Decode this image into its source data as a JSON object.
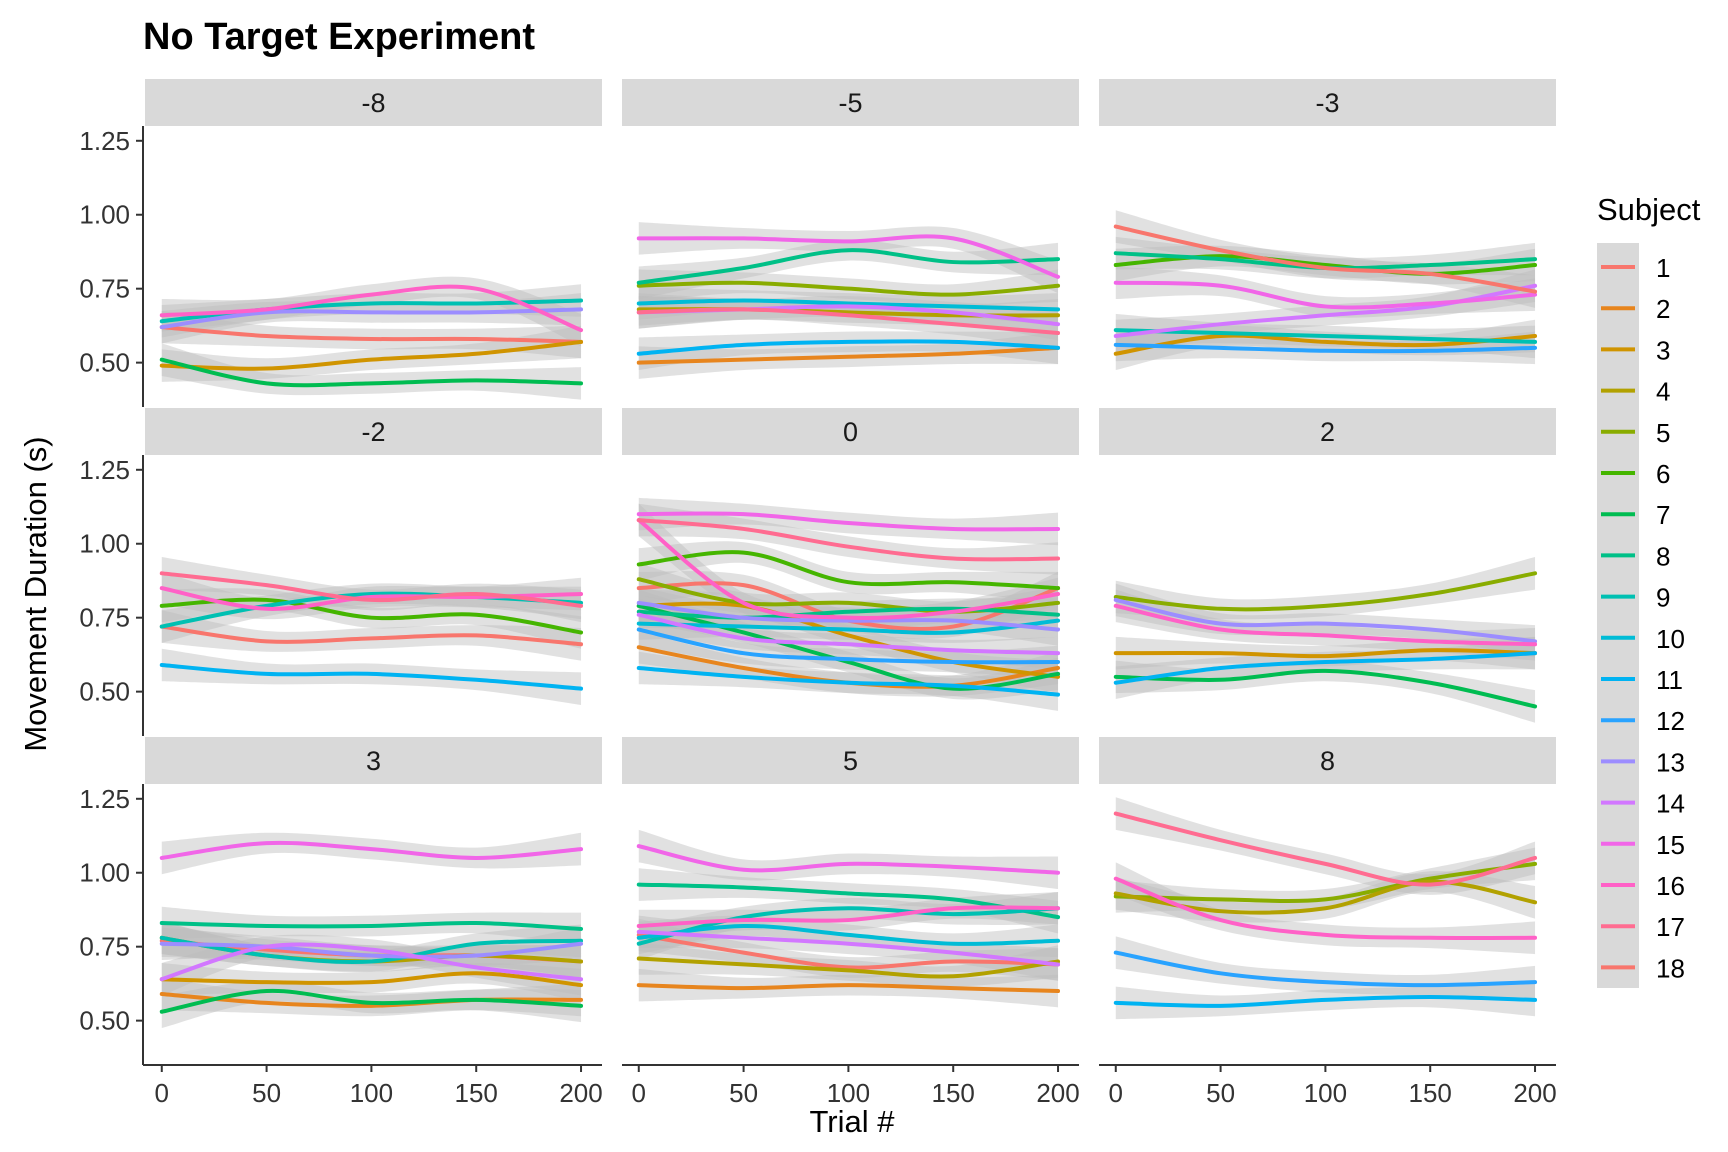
{
  "chart_data": {
    "type": "line",
    "title": "No Target Experiment",
    "xlabel": "Trial #",
    "ylabel": "Movement Duration (s)",
    "xlim": [
      -8,
      210
    ],
    "ylim": [
      0.35,
      1.3
    ],
    "x_ticks": [
      0,
      50,
      100,
      150,
      200
    ],
    "y_ticks": [
      0.5,
      0.75,
      1.0,
      1.25
    ],
    "y_tick_labels": [
      "0.50",
      "0.75",
      "1.00",
      "1.25"
    ],
    "x_tick_labels": [
      "0",
      "50",
      "100",
      "150",
      "200"
    ],
    "x": [
      0,
      50,
      100,
      150,
      200
    ],
    "grid": false,
    "facet_layout": "3x3",
    "confidence_band": true,
    "legend": {
      "title": "Subject",
      "position": "right",
      "entries": [
        {
          "label": "1",
          "color": "#F8766D"
        },
        {
          "label": "2",
          "color": "#E7851E"
        },
        {
          "label": "3",
          "color": "#D09400"
        },
        {
          "label": "4",
          "color": "#B2A100"
        },
        {
          "label": "5",
          "color": "#89AC00"
        },
        {
          "label": "6",
          "color": "#45B500"
        },
        {
          "label": "7",
          "color": "#00BC51"
        },
        {
          "label": "8",
          "color": "#00C087"
        },
        {
          "label": "9",
          "color": "#00C0B2"
        },
        {
          "label": "10",
          "color": "#00BCD6"
        },
        {
          "label": "11",
          "color": "#00B3F2"
        },
        {
          "label": "12",
          "color": "#29A3FF"
        },
        {
          "label": "13",
          "color": "#9C8DFF"
        },
        {
          "label": "14",
          "color": "#D277FF"
        },
        {
          "label": "15",
          "color": "#F166E8"
        },
        {
          "label": "16",
          "color": "#FF61C7"
        },
        {
          "label": "17",
          "color": "#FF6C91"
        },
        {
          "label": "18",
          "color": "#F8766D"
        }
      ]
    },
    "facets": [
      {
        "label": "-8",
        "series": [
          {
            "subject": "1",
            "color": "#F8766D",
            "values": [
              0.62,
              0.59,
              0.58,
              0.58,
              0.57
            ]
          },
          {
            "subject": "3",
            "color": "#D09400",
            "values": [
              0.49,
              0.48,
              0.51,
              0.53,
              0.57
            ]
          },
          {
            "subject": "7",
            "color": "#00BC51",
            "values": [
              0.51,
              0.43,
              0.43,
              0.44,
              0.43
            ]
          },
          {
            "subject": "9",
            "color": "#00C0B2",
            "values": [
              0.64,
              0.68,
              0.7,
              0.7,
              0.71
            ]
          },
          {
            "subject": "13",
            "color": "#9C8DFF",
            "values": [
              0.62,
              0.67,
              0.67,
              0.67,
              0.68
            ]
          },
          {
            "subject": "16",
            "color": "#FF61C7",
            "values": [
              0.66,
              0.68,
              0.73,
              0.75,
              0.61
            ]
          }
        ]
      },
      {
        "label": "-5",
        "series": [
          {
            "subject": "2",
            "color": "#E7851E",
            "values": [
              0.5,
              0.51,
              0.52,
              0.53,
              0.55
            ]
          },
          {
            "subject": "4",
            "color": "#B2A100",
            "values": [
              0.68,
              0.68,
              0.67,
              0.66,
              0.66
            ]
          },
          {
            "subject": "5",
            "color": "#89AC00",
            "values": [
              0.76,
              0.77,
              0.75,
              0.73,
              0.76
            ]
          },
          {
            "subject": "8",
            "color": "#00C087",
            "values": [
              0.77,
              0.82,
              0.88,
              0.84,
              0.85
            ]
          },
          {
            "subject": "10",
            "color": "#00BCD6",
            "values": [
              0.7,
              0.71,
              0.7,
              0.69,
              0.68
            ]
          },
          {
            "subject": "11",
            "color": "#00B3F2",
            "values": [
              0.53,
              0.56,
              0.57,
              0.57,
              0.55
            ]
          },
          {
            "subject": "14",
            "color": "#D277FF",
            "values": [
              0.67,
              0.68,
              0.69,
              0.67,
              0.63
            ]
          },
          {
            "subject": "15",
            "color": "#F166E8",
            "values": [
              0.92,
              0.92,
              0.91,
              0.92,
              0.79
            ]
          },
          {
            "subject": "17",
            "color": "#FF6C91",
            "values": [
              0.67,
              0.68,
              0.66,
              0.63,
              0.6
            ]
          }
        ]
      },
      {
        "label": "-3",
        "series": [
          {
            "subject": "3",
            "color": "#D09400",
            "values": [
              0.53,
              0.59,
              0.57,
              0.56,
              0.59
            ]
          },
          {
            "subject": "6",
            "color": "#45B500",
            "values": [
              0.83,
              0.86,
              0.83,
              0.8,
              0.83
            ]
          },
          {
            "subject": "8",
            "color": "#00C087",
            "values": [
              0.87,
              0.85,
              0.82,
              0.83,
              0.85
            ]
          },
          {
            "subject": "9",
            "color": "#00C0B2",
            "values": [
              0.61,
              0.6,
              0.59,
              0.58,
              0.57
            ]
          },
          {
            "subject": "12",
            "color": "#29A3FF",
            "values": [
              0.56,
              0.55,
              0.54,
              0.54,
              0.55
            ]
          },
          {
            "subject": "14",
            "color": "#D277FF",
            "values": [
              0.59,
              0.63,
              0.66,
              0.69,
              0.76
            ]
          },
          {
            "subject": "15",
            "color": "#F166E8",
            "values": [
              0.77,
              0.76,
              0.69,
              0.7,
              0.73
            ]
          },
          {
            "subject": "18",
            "color": "#F8766D",
            "values": [
              0.96,
              0.88,
              0.82,
              0.8,
              0.74
            ]
          }
        ]
      },
      {
        "label": "-2",
        "series": [
          {
            "subject": "1",
            "color": "#F8766D",
            "values": [
              0.72,
              0.67,
              0.68,
              0.69,
              0.66
            ]
          },
          {
            "subject": "6",
            "color": "#45B500",
            "values": [
              0.79,
              0.81,
              0.75,
              0.76,
              0.7
            ]
          },
          {
            "subject": "9",
            "color": "#00C0B2",
            "values": [
              0.72,
              0.79,
              0.83,
              0.82,
              0.8
            ]
          },
          {
            "subject": "11",
            "color": "#00B3F2",
            "values": [
              0.59,
              0.56,
              0.56,
              0.54,
              0.51
            ]
          },
          {
            "subject": "16",
            "color": "#FF61C7",
            "values": [
              0.85,
              0.78,
              0.82,
              0.82,
              0.83
            ]
          },
          {
            "subject": "17",
            "color": "#FF6C91",
            "values": [
              0.9,
              0.86,
              0.81,
              0.83,
              0.79
            ]
          }
        ]
      },
      {
        "label": "0",
        "series": [
          {
            "subject": "1",
            "color": "#F8766D",
            "values": [
              0.85,
              0.86,
              0.74,
              0.72,
              0.85
            ]
          },
          {
            "subject": "2",
            "color": "#E7851E",
            "values": [
              0.65,
              0.58,
              0.53,
              0.52,
              0.58
            ]
          },
          {
            "subject": "3",
            "color": "#D09400",
            "values": [
              0.79,
              0.79,
              0.69,
              0.6,
              0.55
            ]
          },
          {
            "subject": "5",
            "color": "#89AC00",
            "values": [
              0.88,
              0.8,
              0.8,
              0.77,
              0.8
            ]
          },
          {
            "subject": "6",
            "color": "#45B500",
            "values": [
              0.93,
              0.97,
              0.87,
              0.87,
              0.85
            ]
          },
          {
            "subject": "7",
            "color": "#00BC51",
            "values": [
              0.79,
              0.7,
              0.6,
              0.51,
              0.56
            ]
          },
          {
            "subject": "8",
            "color": "#00C087",
            "values": [
              0.77,
              0.75,
              0.77,
              0.78,
              0.76
            ]
          },
          {
            "subject": "10",
            "color": "#00BCD6",
            "values": [
              0.73,
              0.72,
              0.71,
              0.7,
              0.74
            ]
          },
          {
            "subject": "11",
            "color": "#00B3F2",
            "values": [
              0.58,
              0.55,
              0.53,
              0.52,
              0.49
            ]
          },
          {
            "subject": "12",
            "color": "#29A3FF",
            "values": [
              0.71,
              0.63,
              0.61,
              0.6,
              0.6
            ]
          },
          {
            "subject": "13",
            "color": "#9C8DFF",
            "values": [
              0.8,
              0.75,
              0.74,
              0.74,
              0.71
            ]
          },
          {
            "subject": "14",
            "color": "#D277FF",
            "values": [
              0.76,
              0.68,
              0.66,
              0.64,
              0.63
            ]
          },
          {
            "subject": "15",
            "color": "#F166E8",
            "values": [
              1.1,
              1.1,
              1.07,
              1.05,
              1.05
            ]
          },
          {
            "subject": "16",
            "color": "#FF61C7",
            "values": [
              1.08,
              0.8,
              0.75,
              0.77,
              0.83
            ]
          },
          {
            "subject": "17",
            "color": "#FF6C91",
            "values": [
              1.08,
              1.05,
              0.99,
              0.95,
              0.95
            ]
          }
        ]
      },
      {
        "label": "2",
        "series": [
          {
            "subject": "3",
            "color": "#D09400",
            "values": [
              0.63,
              0.63,
              0.62,
              0.64,
              0.63
            ]
          },
          {
            "subject": "5",
            "color": "#89AC00",
            "values": [
              0.82,
              0.78,
              0.79,
              0.83,
              0.9
            ]
          },
          {
            "subject": "7",
            "color": "#00BC51",
            "values": [
              0.55,
              0.54,
              0.57,
              0.53,
              0.45
            ]
          },
          {
            "subject": "11",
            "color": "#00B3F2",
            "values": [
              0.53,
              0.58,
              0.6,
              0.61,
              0.63
            ]
          },
          {
            "subject": "13",
            "color": "#9C8DFF",
            "values": [
              0.81,
              0.73,
              0.73,
              0.71,
              0.67
            ]
          },
          {
            "subject": "16",
            "color": "#FF61C7",
            "values": [
              0.79,
              0.71,
              0.69,
              0.67,
              0.66
            ]
          }
        ]
      },
      {
        "label": "3",
        "series": [
          {
            "subject": "1",
            "color": "#F8766D",
            "values": [
              0.77,
              0.74,
              0.72,
              0.72,
              0.7
            ]
          },
          {
            "subject": "2",
            "color": "#E7851E",
            "values": [
              0.59,
              0.56,
              0.55,
              0.57,
              0.57
            ]
          },
          {
            "subject": "3",
            "color": "#D09400",
            "values": [
              0.64,
              0.63,
              0.63,
              0.66,
              0.62
            ]
          },
          {
            "subject": "4",
            "color": "#B2A100",
            "values": [
              0.78,
              0.72,
              0.7,
              0.72,
              0.7
            ]
          },
          {
            "subject": "7",
            "color": "#00BC51",
            "values": [
              0.53,
              0.6,
              0.56,
              0.57,
              0.55
            ]
          },
          {
            "subject": "8",
            "color": "#00C087",
            "values": [
              0.83,
              0.82,
              0.82,
              0.83,
              0.81
            ]
          },
          {
            "subject": "9",
            "color": "#00C0B2",
            "values": [
              0.78,
              0.72,
              0.7,
              0.76,
              0.77
            ]
          },
          {
            "subject": "13",
            "color": "#9C8DFF",
            "values": [
              0.76,
              0.75,
              0.72,
              0.72,
              0.76
            ]
          },
          {
            "subject": "14",
            "color": "#D277FF",
            "values": [
              0.64,
              0.75,
              0.74,
              0.68,
              0.64
            ]
          },
          {
            "subject": "15",
            "color": "#F166E8",
            "values": [
              1.05,
              1.1,
              1.08,
              1.05,
              1.08
            ]
          }
        ]
      },
      {
        "label": "5",
        "series": [
          {
            "subject": "1",
            "color": "#F8766D",
            "values": [
              0.79,
              0.73,
              0.68,
              0.7,
              0.69
            ]
          },
          {
            "subject": "2",
            "color": "#E7851E",
            "values": [
              0.62,
              0.61,
              0.62,
              0.61,
              0.6
            ]
          },
          {
            "subject": "4",
            "color": "#B2A100",
            "values": [
              0.71,
              0.69,
              0.67,
              0.65,
              0.7
            ]
          },
          {
            "subject": "8",
            "color": "#00C087",
            "values": [
              0.96,
              0.95,
              0.93,
              0.91,
              0.85
            ]
          },
          {
            "subject": "9",
            "color": "#00C0B2",
            "values": [
              0.76,
              0.85,
              0.88,
              0.86,
              0.88
            ]
          },
          {
            "subject": "10",
            "color": "#00BCD6",
            "values": [
              0.78,
              0.82,
              0.79,
              0.76,
              0.77
            ]
          },
          {
            "subject": "14",
            "color": "#D277FF",
            "values": [
              0.8,
              0.78,
              0.76,
              0.73,
              0.69
            ]
          },
          {
            "subject": "15",
            "color": "#F166E8",
            "values": [
              1.09,
              1.01,
              1.03,
              1.02,
              1.0
            ]
          },
          {
            "subject": "16",
            "color": "#FF61C7",
            "values": [
              0.82,
              0.84,
              0.84,
              0.88,
              0.88
            ]
          }
        ]
      },
      {
        "label": "8",
        "series": [
          {
            "subject": "5",
            "color": "#89AC00",
            "values": [
              0.92,
              0.91,
              0.91,
              0.98,
              1.03
            ]
          },
          {
            "subject": "4",
            "color": "#B2A100",
            "values": [
              0.93,
              0.87,
              0.88,
              0.97,
              0.9
            ]
          },
          {
            "subject": "11",
            "color": "#00B3F2",
            "values": [
              0.56,
              0.55,
              0.57,
              0.58,
              0.57
            ]
          },
          {
            "subject": "12",
            "color": "#29A3FF",
            "values": [
              0.73,
              0.66,
              0.63,
              0.62,
              0.63
            ]
          },
          {
            "subject": "16",
            "color": "#FF61C7",
            "values": [
              0.98,
              0.84,
              0.79,
              0.78,
              0.78
            ]
          },
          {
            "subject": "17",
            "color": "#FF6C91",
            "values": [
              1.2,
              1.11,
              1.03,
              0.96,
              1.05
            ]
          }
        ]
      }
    ]
  }
}
